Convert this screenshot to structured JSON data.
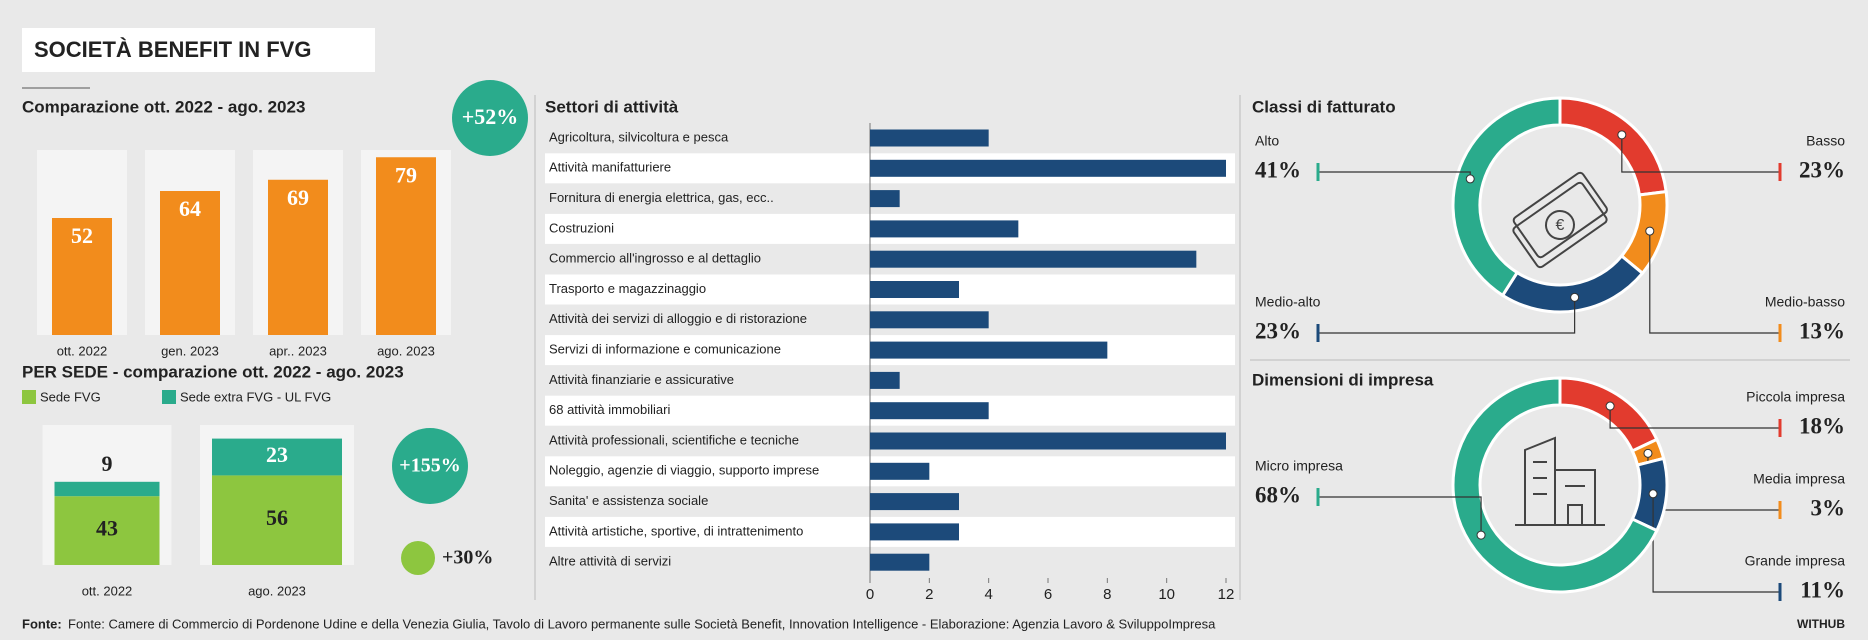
{
  "title": "SOCIETÀ BENEFIT IN FVG",
  "source_label": "Fonte:",
  "source": "Fonte: Camere di Commercio di Pordenone Udine e della Venezia Giulia, Tavolo di Lavoro permanente sulle Società Benefit, Innovation Intelligence - Elaborazione: Agenzia Lavoro & SviluppoImpresa",
  "brand": "WITHUB",
  "chart_data": [
    {
      "type": "bar",
      "title": "Comparazione ott. 2022 - ago. 2023",
      "categories": [
        "ott. 2022",
        "gen. 2023",
        "apr.. 2023",
        "ago. 2023"
      ],
      "values": [
        52,
        64,
        69,
        79
      ],
      "color": "#f28c1c",
      "annotation": "+52%",
      "annotation_color": "#2aab8c"
    },
    {
      "type": "stacked_bar",
      "title": "PER SEDE - comparazione ott. 2022 - ago. 2023",
      "categories": [
        "ott. 2022",
        "ago. 2023"
      ],
      "series": [
        {
          "name": "Sede FVG",
          "color": "#8dc63f",
          "values": [
            43,
            56
          ]
        },
        {
          "name": "Sede extra FVG - UL FVG",
          "color": "#2aab8c",
          "values": [
            9,
            23
          ]
        }
      ],
      "annotations": [
        {
          "text": "+155%",
          "color": "#2aab8c"
        },
        {
          "text": "+30%",
          "color": "#8dc63f"
        }
      ]
    },
    {
      "type": "hbar",
      "title": "Settori di attività",
      "categories": [
        "Agricoltura, silvicoltura e pesca",
        "Attività manifatturiere",
        "Fornitura di energia elettrica, gas, ecc..",
        "Costruzioni",
        "Commercio all'ingrosso e al dettaglio",
        "Trasporto e magazzinaggio",
        "Attività dei servizi di alloggio e di ristorazione",
        "Servizi di informazione e comunicazione",
        "Attività finanziarie e assicurative",
        "68 attività immobiliari",
        "Attività professionali, scientifiche e tecniche",
        "Noleggio, agenzie di viaggio, supporto imprese",
        "Sanita' e assistenza sociale",
        "Attività artistiche, sportive, di intrattenimento",
        "Altre attività di servizi"
      ],
      "values": [
        4,
        12,
        1,
        5,
        11,
        3,
        4,
        8,
        1,
        4,
        12,
        2,
        3,
        3,
        2
      ],
      "color": "#1c4a7a",
      "xlim": [
        0,
        12
      ],
      "xticks": [
        0,
        2,
        4,
        6,
        8,
        10,
        12
      ]
    },
    {
      "type": "donut",
      "title": "Classi di fatturato",
      "categories": [
        "Basso",
        "Medio-basso",
        "Medio-alto",
        "Alto"
      ],
      "values": [
        23,
        13,
        23,
        41
      ],
      "value_labels": [
        "23%",
        "13%",
        "23%",
        "41%"
      ],
      "colors": [
        "#e23b2e",
        "#f28c1c",
        "#1c4a7a",
        "#2aab8c"
      ]
    },
    {
      "type": "donut",
      "title": "Dimensioni di impresa",
      "categories": [
        "Piccola impresa",
        "Media impresa",
        "Grande impresa",
        "Micro impresa"
      ],
      "values": [
        18,
        3,
        11,
        68
      ],
      "value_labels": [
        "18%",
        "3%",
        "11%",
        "68%"
      ],
      "colors": [
        "#e23b2e",
        "#f28c1c",
        "#1c4a7a",
        "#2aab8c"
      ]
    }
  ]
}
